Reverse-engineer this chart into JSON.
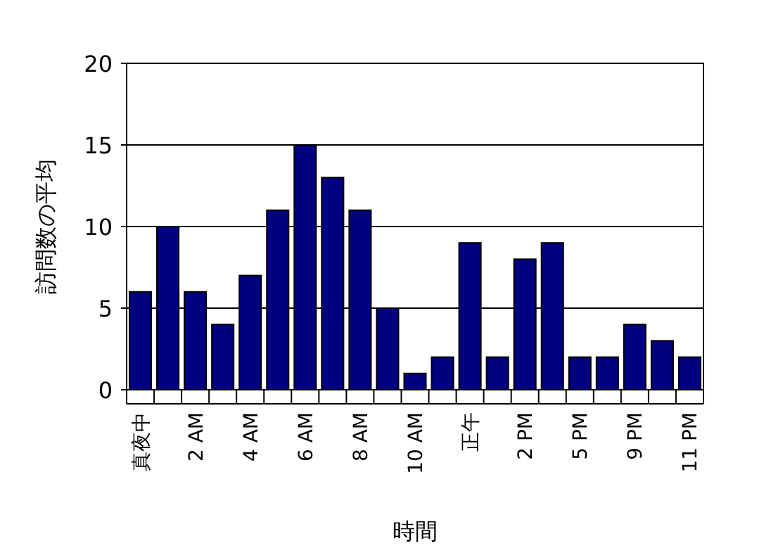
{
  "chart_data": {
    "type": "bar",
    "xlabel": "時間",
    "ylabel": "訪問数の平均",
    "categories": [
      "真夜中",
      null,
      "2 AM",
      null,
      "4 AM",
      null,
      "6 AM",
      null,
      "8 AM",
      null,
      "10 AM",
      null,
      "正午",
      null,
      "2 PM",
      null,
      "5 PM",
      null,
      "9 PM",
      null,
      "11 PM"
    ],
    "values": [
      6,
      10,
      6,
      4,
      7,
      11,
      15,
      13,
      11,
      5,
      1,
      2,
      9,
      2,
      8,
      9,
      2,
      2,
      4,
      3,
      2
    ],
    "color": "#000080",
    "ylim": [
      0,
      20
    ],
    "yticks": [
      0,
      5,
      10,
      15,
      20
    ],
    "grid": "y"
  }
}
